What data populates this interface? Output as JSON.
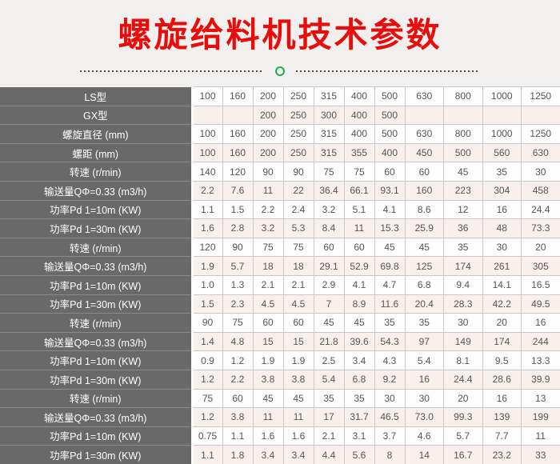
{
  "title": "螺旋给料机技术参数",
  "divider": {
    "dot_color": "#4a4a4a",
    "circle_color": "#1faa4e"
  },
  "colors": {
    "title_red": "#e60d0a",
    "header_column_bg": "#696969",
    "alt_row_bg": "#f9efed",
    "cell_border": "#c9c9c9",
    "page_bg": "#f1f0ef"
  },
  "table": {
    "rows": [
      {
        "label": "LS型",
        "values": [
          "100",
          "160",
          "200",
          "250",
          "315",
          "400",
          "500",
          "630",
          "800",
          "1000",
          "1250"
        ]
      },
      {
        "label": "GX型",
        "values": [
          "",
          "",
          "200",
          "250",
          "300",
          "400",
          "500",
          "",
          "",
          "",
          ""
        ]
      },
      {
        "label": "螺旋直径 (mm)",
        "values": [
          "100",
          "160",
          "200",
          "250",
          "315",
          "400",
          "500",
          "630",
          "800",
          "1000",
          "1250"
        ]
      },
      {
        "label": "螺距 (mm)",
        "values": [
          "100",
          "160",
          "200",
          "250",
          "315",
          "355",
          "400",
          "450",
          "500",
          "560",
          "630"
        ]
      },
      {
        "label": "转速 (r/min)",
        "values": [
          "140",
          "120",
          "90",
          "90",
          "75",
          "75",
          "60",
          "60",
          "45",
          "35",
          "30"
        ]
      },
      {
        "label": "输送量QΦ=0.33 (m3/h)",
        "values": [
          "2.2",
          "7.6",
          "11",
          "22",
          "36.4",
          "66.1",
          "93.1",
          "160",
          "223",
          "304",
          "458"
        ]
      },
      {
        "label": "功率Pd 1=10m (KW)",
        "values": [
          "1.1",
          "1.5",
          "2.2",
          "2.4",
          "3.2",
          "5.1",
          "4.1",
          "8.6",
          "12",
          "16",
          "24.4"
        ]
      },
      {
        "label": "功率Pd 1=30m (KW)",
        "values": [
          "1.6",
          "2.8",
          "3.2",
          "5.3",
          "8.4",
          "11",
          "15.3",
          "25.9",
          "36",
          "48",
          "73.3"
        ]
      },
      {
        "label": "转速 (r/min)",
        "values": [
          "120",
          "90",
          "75",
          "75",
          "60",
          "60",
          "45",
          "45",
          "35",
          "30",
          "20"
        ]
      },
      {
        "label": "输送量QΦ=0.33 (m3/h)",
        "values": [
          "1.9",
          "5.7",
          "18",
          "18",
          "29.1",
          "52.9",
          "69.8",
          "125",
          "174",
          "261",
          "305"
        ]
      },
      {
        "label": "功率Pd 1=10m (KW)",
        "values": [
          "1.0",
          "1.3",
          "2.1",
          "2.1",
          "2.9",
          "4.1",
          "4.7",
          "6.8",
          "9.4",
          "14.1",
          "16.5"
        ]
      },
      {
        "label": "功率Pd 1=30m (KW)",
        "values": [
          "1.5",
          "2.3",
          "4.5",
          "4.5",
          "7",
          "8.9",
          "11.6",
          "20.4",
          "28.3",
          "42.2",
          "49.5"
        ]
      },
      {
        "label": "转速 (r/min)",
        "values": [
          "90",
          "75",
          "60",
          "60",
          "45",
          "45",
          "35",
          "35",
          "30",
          "20",
          "16"
        ]
      },
      {
        "label": "输送量QΦ=0.33 (m3/h)",
        "values": [
          "1.4",
          "4.8",
          "15",
          "15",
          "21.8",
          "39.6",
          "54.3",
          "97",
          "149",
          "174",
          "244"
        ]
      },
      {
        "label": "功率Pd 1=10m (KW)",
        "values": [
          "0.9",
          "1.2",
          "1.9",
          "1.9",
          "2.5",
          "3.4",
          "4.3",
          "5.4",
          "8.1",
          "9.5",
          "13.3"
        ]
      },
      {
        "label": "功率Pd 1=30m (KW)",
        "values": [
          "1.2",
          "2.2",
          "3.8",
          "3.8",
          "5.4",
          "6.8",
          "9.2",
          "16",
          "24.4",
          "28.6",
          "39.9"
        ]
      },
      {
        "label": "转速 (r/min)",
        "values": [
          "75",
          "60",
          "45",
          "45",
          "35",
          "35",
          "30",
          "30",
          "20",
          "16",
          "13"
        ]
      },
      {
        "label": "输送量QΦ=0.33 (m3/h)",
        "values": [
          "1.2",
          "3.8",
          "11",
          "11",
          "17",
          "31.7",
          "46.5",
          "73.0",
          "99.3",
          "139",
          "199"
        ]
      },
      {
        "label": "功率Pd 1=10m (KW)",
        "values": [
          "0.75",
          "1.1",
          "1.6",
          "1.6",
          "2.1",
          "3.1",
          "3.7",
          "4.6",
          "5.7",
          "7.7",
          "11"
        ]
      },
      {
        "label": "功率Pd 1=30m (KW)",
        "values": [
          "1.1",
          "1.8",
          "3.4",
          "3.4",
          "4.4",
          "5.6",
          "8",
          "14",
          "16.7",
          "23.2",
          "33"
        ]
      }
    ]
  }
}
